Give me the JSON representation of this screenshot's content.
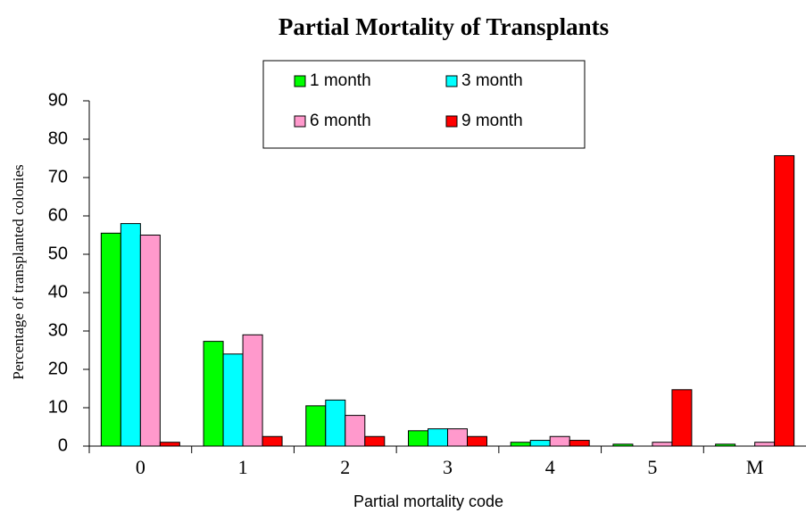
{
  "chart_data": {
    "type": "bar",
    "title": "Partial Mortality of Transplants",
    "x_label": "Partial mortality code",
    "y_label": "Percentage of transplanted colonies",
    "categories": [
      "0",
      "1",
      "2",
      "3",
      "4",
      "5",
      "M"
    ],
    "series": [
      {
        "name": "1 month",
        "color": "#00ff00",
        "values": [
          55.5,
          27.3,
          10.5,
          4,
          1,
          0.5,
          0.5
        ]
      },
      {
        "name": "3 month",
        "color": "#00ffff",
        "values": [
          58,
          24,
          12,
          4.5,
          1.5,
          0,
          0
        ]
      },
      {
        "name": "6 month",
        "color": "#ff99cc",
        "values": [
          55,
          29,
          8,
          4.5,
          2.5,
          1,
          1
        ]
      },
      {
        "name": "9 month",
        "color": "#ff0000",
        "values": [
          1,
          2.5,
          2.5,
          2.5,
          1.5,
          14.7,
          75.7
        ]
      }
    ],
    "ylim": [
      0,
      90
    ],
    "yticks": [
      0,
      10,
      20,
      30,
      40,
      50,
      60,
      70,
      80,
      90
    ],
    "grid": false
  }
}
